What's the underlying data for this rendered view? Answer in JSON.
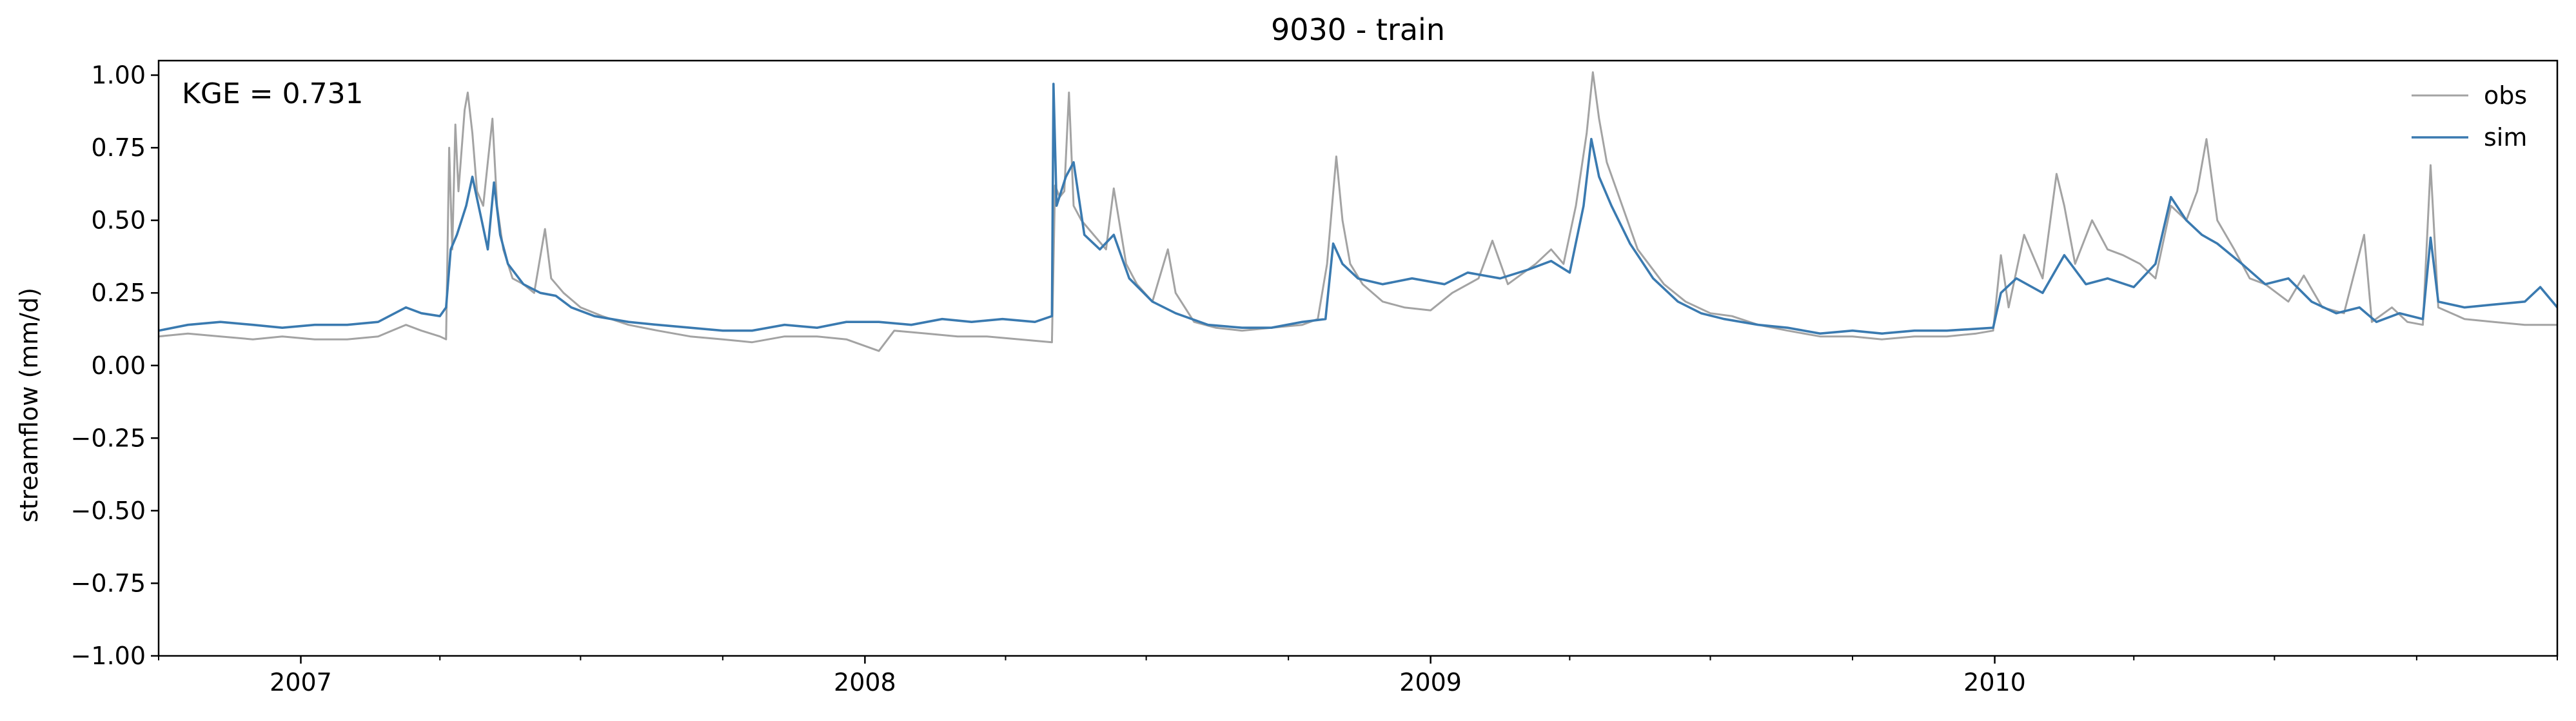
{
  "chart_data": {
    "type": "line",
    "title": "9030 - train",
    "xlabel": "",
    "ylabel": "streamflow (mm/d)",
    "annotation": "KGE = 0.731",
    "x_range": [
      "2006-10-01",
      "2010-12-31"
    ],
    "ylim": [
      -1.0,
      1.05
    ],
    "x_ticks": [
      {
        "date": "2007-01-01",
        "label": "2007"
      },
      {
        "date": "2008-01-01",
        "label": "2008"
      },
      {
        "date": "2009-01-01",
        "label": "2009"
      },
      {
        "date": "2010-01-01",
        "label": "2010"
      }
    ],
    "x_minor_ticks": [
      "2006-10-01",
      "2007-04-01",
      "2007-07-01",
      "2007-10-01",
      "2008-04-01",
      "2008-07-01",
      "2008-10-01",
      "2009-04-01",
      "2009-07-01",
      "2009-10-01",
      "2010-04-01",
      "2010-07-01",
      "2010-10-01",
      "2010-12-31"
    ],
    "y_ticks": [
      {
        "value": 1.0,
        "label": "1.00"
      },
      {
        "value": 0.75,
        "label": "0.75"
      },
      {
        "value": 0.5,
        "label": "0.50"
      },
      {
        "value": 0.25,
        "label": "0.25"
      },
      {
        "value": 0.0,
        "label": "0.00"
      },
      {
        "value": -0.25,
        "label": "−0.25"
      },
      {
        "value": -0.5,
        "label": "−0.50"
      },
      {
        "value": -0.75,
        "label": "−0.75"
      },
      {
        "value": -1.0,
        "label": "−1.00"
      }
    ],
    "grid": false,
    "legend_position": "top-right",
    "series": [
      {
        "name": "obs",
        "color": "#a3a3a3",
        "points": [
          [
            "2006-10-01",
            0.1
          ],
          [
            "2006-10-20",
            0.11
          ],
          [
            "2006-11-10",
            0.1
          ],
          [
            "2006-12-01",
            0.09
          ],
          [
            "2006-12-20",
            0.1
          ],
          [
            "2007-01-10",
            0.09
          ],
          [
            "2007-01-31",
            0.09
          ],
          [
            "2007-02-20",
            0.1
          ],
          [
            "2007-03-10",
            0.14
          ],
          [
            "2007-03-20",
            0.12
          ],
          [
            "2007-04-01",
            0.1
          ],
          [
            "2007-04-05",
            0.09
          ],
          [
            "2007-04-07",
            0.75
          ],
          [
            "2007-04-09",
            0.4
          ],
          [
            "2007-04-11",
            0.83
          ],
          [
            "2007-04-13",
            0.6
          ],
          [
            "2007-04-17",
            0.88
          ],
          [
            "2007-04-19",
            0.94
          ],
          [
            "2007-04-22",
            0.8
          ],
          [
            "2007-04-25",
            0.6
          ],
          [
            "2007-04-29",
            0.55
          ],
          [
            "2007-05-02",
            0.7
          ],
          [
            "2007-05-05",
            0.85
          ],
          [
            "2007-05-08",
            0.55
          ],
          [
            "2007-05-12",
            0.4
          ],
          [
            "2007-05-18",
            0.3
          ],
          [
            "2007-05-25",
            0.28
          ],
          [
            "2007-06-01",
            0.25
          ],
          [
            "2007-06-08",
            0.47
          ],
          [
            "2007-06-12",
            0.3
          ],
          [
            "2007-06-20",
            0.25
          ],
          [
            "2007-07-01",
            0.2
          ],
          [
            "2007-07-15",
            0.17
          ],
          [
            "2007-08-01",
            0.14
          ],
          [
            "2007-08-20",
            0.12
          ],
          [
            "2007-09-10",
            0.1
          ],
          [
            "2007-10-01",
            0.09
          ],
          [
            "2007-10-20",
            0.08
          ],
          [
            "2007-11-10",
            0.1
          ],
          [
            "2007-12-01",
            0.1
          ],
          [
            "2007-12-20",
            0.09
          ],
          [
            "2008-01-10",
            0.05
          ],
          [
            "2008-01-20",
            0.12
          ],
          [
            "2008-02-10",
            0.11
          ],
          [
            "2008-03-01",
            0.1
          ],
          [
            "2008-03-20",
            0.1
          ],
          [
            "2008-04-10",
            0.09
          ],
          [
            "2008-05-01",
            0.08
          ],
          [
            "2008-05-03",
            0.62
          ],
          [
            "2008-05-06",
            0.58
          ],
          [
            "2008-05-09",
            0.6
          ],
          [
            "2008-05-12",
            0.94
          ],
          [
            "2008-05-15",
            0.55
          ],
          [
            "2008-05-20",
            0.5
          ],
          [
            "2008-05-28",
            0.45
          ],
          [
            "2008-06-05",
            0.4
          ],
          [
            "2008-06-10",
            0.61
          ],
          [
            "2008-06-18",
            0.35
          ],
          [
            "2008-06-25",
            0.28
          ],
          [
            "2008-07-05",
            0.22
          ],
          [
            "2008-07-15",
            0.4
          ],
          [
            "2008-07-20",
            0.25
          ],
          [
            "2008-08-01",
            0.15
          ],
          [
            "2008-08-15",
            0.13
          ],
          [
            "2008-09-01",
            0.12
          ],
          [
            "2008-09-20",
            0.13
          ],
          [
            "2008-10-10",
            0.14
          ],
          [
            "2008-10-20",
            0.16
          ],
          [
            "2008-10-26",
            0.35
          ],
          [
            "2008-11-01",
            0.72
          ],
          [
            "2008-11-05",
            0.5
          ],
          [
            "2008-11-10",
            0.35
          ],
          [
            "2008-11-18",
            0.28
          ],
          [
            "2008-12-01",
            0.22
          ],
          [
            "2008-12-15",
            0.2
          ],
          [
            "2009-01-01",
            0.19
          ],
          [
            "2009-01-15",
            0.25
          ],
          [
            "2009-02-01",
            0.3
          ],
          [
            "2009-02-10",
            0.43
          ],
          [
            "2009-02-20",
            0.28
          ],
          [
            "2009-03-10",
            0.35
          ],
          [
            "2009-03-20",
            0.4
          ],
          [
            "2009-03-28",
            0.35
          ],
          [
            "2009-04-05",
            0.55
          ],
          [
            "2009-04-12",
            0.8
          ],
          [
            "2009-04-16",
            1.01
          ],
          [
            "2009-04-20",
            0.85
          ],
          [
            "2009-04-25",
            0.7
          ],
          [
            "2009-05-05",
            0.55
          ],
          [
            "2009-05-15",
            0.4
          ],
          [
            "2009-06-01",
            0.28
          ],
          [
            "2009-06-15",
            0.22
          ],
          [
            "2009-07-01",
            0.18
          ],
          [
            "2009-07-15",
            0.17
          ],
          [
            "2009-08-01",
            0.14
          ],
          [
            "2009-08-20",
            0.12
          ],
          [
            "2009-09-10",
            0.1
          ],
          [
            "2009-10-01",
            0.1
          ],
          [
            "2009-10-20",
            0.09
          ],
          [
            "2009-11-10",
            0.1
          ],
          [
            "2009-12-01",
            0.1
          ],
          [
            "2009-12-20",
            0.11
          ],
          [
            "2009-12-31",
            0.12
          ],
          [
            "2010-01-05",
            0.38
          ],
          [
            "2010-01-10",
            0.2
          ],
          [
            "2010-01-20",
            0.45
          ],
          [
            "2010-02-01",
            0.3
          ],
          [
            "2010-02-10",
            0.66
          ],
          [
            "2010-02-15",
            0.55
          ],
          [
            "2010-02-22",
            0.35
          ],
          [
            "2010-03-05",
            0.5
          ],
          [
            "2010-03-15",
            0.4
          ],
          [
            "2010-03-25",
            0.38
          ],
          [
            "2010-04-05",
            0.35
          ],
          [
            "2010-04-15",
            0.3
          ],
          [
            "2010-04-25",
            0.55
          ],
          [
            "2010-05-05",
            0.5
          ],
          [
            "2010-05-12",
            0.6
          ],
          [
            "2010-05-18",
            0.78
          ],
          [
            "2010-05-25",
            0.5
          ],
          [
            "2010-06-05",
            0.4
          ],
          [
            "2010-06-15",
            0.3
          ],
          [
            "2010-06-25",
            0.28
          ],
          [
            "2010-07-10",
            0.22
          ],
          [
            "2010-07-20",
            0.31
          ],
          [
            "2010-08-01",
            0.2
          ],
          [
            "2010-08-15",
            0.18
          ],
          [
            "2010-08-28",
            0.45
          ],
          [
            "2010-09-02",
            0.15
          ],
          [
            "2010-09-15",
            0.2
          ],
          [
            "2010-09-25",
            0.15
          ],
          [
            "2010-10-05",
            0.14
          ],
          [
            "2010-10-10",
            0.69
          ],
          [
            "2010-10-15",
            0.2
          ],
          [
            "2010-11-01",
            0.16
          ],
          [
            "2010-11-20",
            0.15
          ],
          [
            "2010-12-10",
            0.14
          ],
          [
            "2010-12-31",
            0.14
          ]
        ]
      },
      {
        "name": "sim",
        "color": "#3a7ab0",
        "points": [
          [
            "2006-10-01",
            0.12
          ],
          [
            "2006-10-20",
            0.14
          ],
          [
            "2006-11-10",
            0.15
          ],
          [
            "2006-12-01",
            0.14
          ],
          [
            "2006-12-20",
            0.13
          ],
          [
            "2007-01-10",
            0.14
          ],
          [
            "2007-01-31",
            0.14
          ],
          [
            "2007-02-20",
            0.15
          ],
          [
            "2007-03-10",
            0.2
          ],
          [
            "2007-03-20",
            0.18
          ],
          [
            "2007-04-01",
            0.17
          ],
          [
            "2007-04-05",
            0.2
          ],
          [
            "2007-04-08",
            0.4
          ],
          [
            "2007-04-12",
            0.45
          ],
          [
            "2007-04-18",
            0.55
          ],
          [
            "2007-04-22",
            0.65
          ],
          [
            "2007-04-28",
            0.5
          ],
          [
            "2007-05-02",
            0.4
          ],
          [
            "2007-05-06",
            0.63
          ],
          [
            "2007-05-10",
            0.45
          ],
          [
            "2007-05-15",
            0.35
          ],
          [
            "2007-05-25",
            0.28
          ],
          [
            "2007-06-05",
            0.25
          ],
          [
            "2007-06-15",
            0.24
          ],
          [
            "2007-06-25",
            0.2
          ],
          [
            "2007-07-10",
            0.17
          ],
          [
            "2007-08-01",
            0.15
          ],
          [
            "2007-08-20",
            0.14
          ],
          [
            "2007-09-10",
            0.13
          ],
          [
            "2007-10-01",
            0.12
          ],
          [
            "2007-10-20",
            0.12
          ],
          [
            "2007-11-10",
            0.14
          ],
          [
            "2007-12-01",
            0.13
          ],
          [
            "2007-12-20",
            0.15
          ],
          [
            "2008-01-10",
            0.15
          ],
          [
            "2008-01-31",
            0.14
          ],
          [
            "2008-02-20",
            0.16
          ],
          [
            "2008-03-10",
            0.15
          ],
          [
            "2008-03-30",
            0.16
          ],
          [
            "2008-04-20",
            0.15
          ],
          [
            "2008-05-01",
            0.17
          ],
          [
            "2008-05-02",
            0.97
          ],
          [
            "2008-05-04",
            0.55
          ],
          [
            "2008-05-10",
            0.65
          ],
          [
            "2008-05-15",
            0.7
          ],
          [
            "2008-05-22",
            0.45
          ],
          [
            "2008-06-01",
            0.4
          ],
          [
            "2008-06-10",
            0.45
          ],
          [
            "2008-06-20",
            0.3
          ],
          [
            "2008-07-05",
            0.22
          ],
          [
            "2008-07-20",
            0.18
          ],
          [
            "2008-08-10",
            0.14
          ],
          [
            "2008-09-01",
            0.13
          ],
          [
            "2008-09-20",
            0.13
          ],
          [
            "2008-10-10",
            0.15
          ],
          [
            "2008-10-25",
            0.16
          ],
          [
            "2008-10-30",
            0.42
          ],
          [
            "2008-11-05",
            0.35
          ],
          [
            "2008-11-15",
            0.3
          ],
          [
            "2008-12-01",
            0.28
          ],
          [
            "2008-12-20",
            0.3
          ],
          [
            "2009-01-10",
            0.28
          ],
          [
            "2009-01-25",
            0.32
          ],
          [
            "2009-02-15",
            0.3
          ],
          [
            "2009-03-05",
            0.33
          ],
          [
            "2009-03-20",
            0.36
          ],
          [
            "2009-04-01",
            0.32
          ],
          [
            "2009-04-10",
            0.55
          ],
          [
            "2009-04-15",
            0.78
          ],
          [
            "2009-04-20",
            0.65
          ],
          [
            "2009-04-28",
            0.55
          ],
          [
            "2009-05-10",
            0.42
          ],
          [
            "2009-05-25",
            0.3
          ],
          [
            "2009-06-10",
            0.22
          ],
          [
            "2009-06-25",
            0.18
          ],
          [
            "2009-07-10",
            0.16
          ],
          [
            "2009-08-01",
            0.14
          ],
          [
            "2009-08-20",
            0.13
          ],
          [
            "2009-09-10",
            0.11
          ],
          [
            "2009-10-01",
            0.12
          ],
          [
            "2009-10-20",
            0.11
          ],
          [
            "2009-11-10",
            0.12
          ],
          [
            "2009-12-01",
            0.12
          ],
          [
            "2009-12-31",
            0.13
          ],
          [
            "2010-01-05",
            0.25
          ],
          [
            "2010-01-15",
            0.3
          ],
          [
            "2010-02-01",
            0.25
          ],
          [
            "2010-02-15",
            0.38
          ],
          [
            "2010-03-01",
            0.28
          ],
          [
            "2010-03-15",
            0.3
          ],
          [
            "2010-04-01",
            0.27
          ],
          [
            "2010-04-15",
            0.35
          ],
          [
            "2010-04-25",
            0.58
          ],
          [
            "2010-05-05",
            0.5
          ],
          [
            "2010-05-15",
            0.45
          ],
          [
            "2010-05-25",
            0.42
          ],
          [
            "2010-06-10",
            0.35
          ],
          [
            "2010-06-25",
            0.28
          ],
          [
            "2010-07-10",
            0.3
          ],
          [
            "2010-07-25",
            0.22
          ],
          [
            "2010-08-10",
            0.18
          ],
          [
            "2010-08-25",
            0.2
          ],
          [
            "2010-09-05",
            0.15
          ],
          [
            "2010-09-20",
            0.18
          ],
          [
            "2010-10-05",
            0.16
          ],
          [
            "2010-10-10",
            0.44
          ],
          [
            "2010-10-15",
            0.22
          ],
          [
            "2010-11-01",
            0.2
          ],
          [
            "2010-11-20",
            0.21
          ],
          [
            "2010-12-10",
            0.22
          ],
          [
            "2010-12-20",
            0.27
          ],
          [
            "2010-12-31",
            0.2
          ]
        ]
      }
    ]
  }
}
